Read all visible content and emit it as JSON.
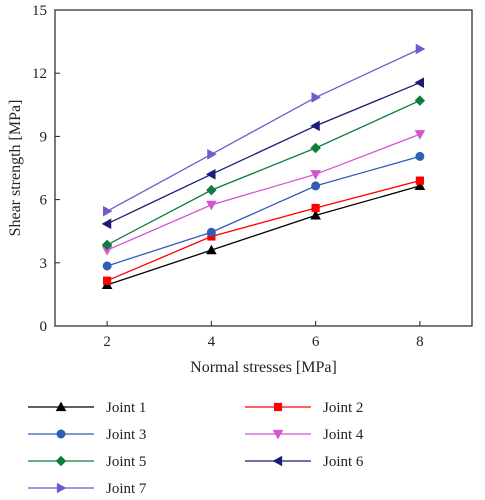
{
  "chart_data": {
    "type": "line",
    "title": "",
    "xlabel": "Normal stresses [MPa]",
    "ylabel": "Shear strength [MPa]",
    "x": [
      2,
      4,
      6,
      8
    ],
    "xlim": [
      1,
      9
    ],
    "ylim": [
      0,
      15
    ],
    "xticks": [
      2,
      4,
      6,
      8
    ],
    "yticks": [
      0,
      3,
      6,
      9,
      12,
      15
    ],
    "grid": false,
    "legend_position": "bottom",
    "series": [
      {
        "name": "Joint 1",
        "values": [
          1.95,
          3.6,
          5.25,
          6.65
        ],
        "color": "#000000",
        "marker": "triangle-up"
      },
      {
        "name": "Joint 2",
        "values": [
          2.15,
          4.25,
          5.6,
          6.9
        ],
        "color": "#ff0000",
        "marker": "square"
      },
      {
        "name": "Joint 3",
        "values": [
          2.85,
          4.45,
          6.65,
          8.05
        ],
        "color": "#2e5eb5",
        "marker": "circle"
      },
      {
        "name": "Joint 4",
        "values": [
          3.6,
          5.75,
          7.2,
          9.1
        ],
        "color": "#d255d2",
        "marker": "triangle-down"
      },
      {
        "name": "Joint 5",
        "values": [
          3.85,
          6.45,
          8.45,
          10.7
        ],
        "color": "#0c7d3a",
        "marker": "diamond"
      },
      {
        "name": "Joint 6",
        "values": [
          4.85,
          7.2,
          9.5,
          11.55
        ],
        "color": "#1c1c78",
        "marker": "triangle-left"
      },
      {
        "name": "Joint 7",
        "values": [
          5.45,
          8.15,
          10.85,
          13.15
        ],
        "color": "#6f5bc9",
        "marker": "triangle-right"
      }
    ]
  }
}
